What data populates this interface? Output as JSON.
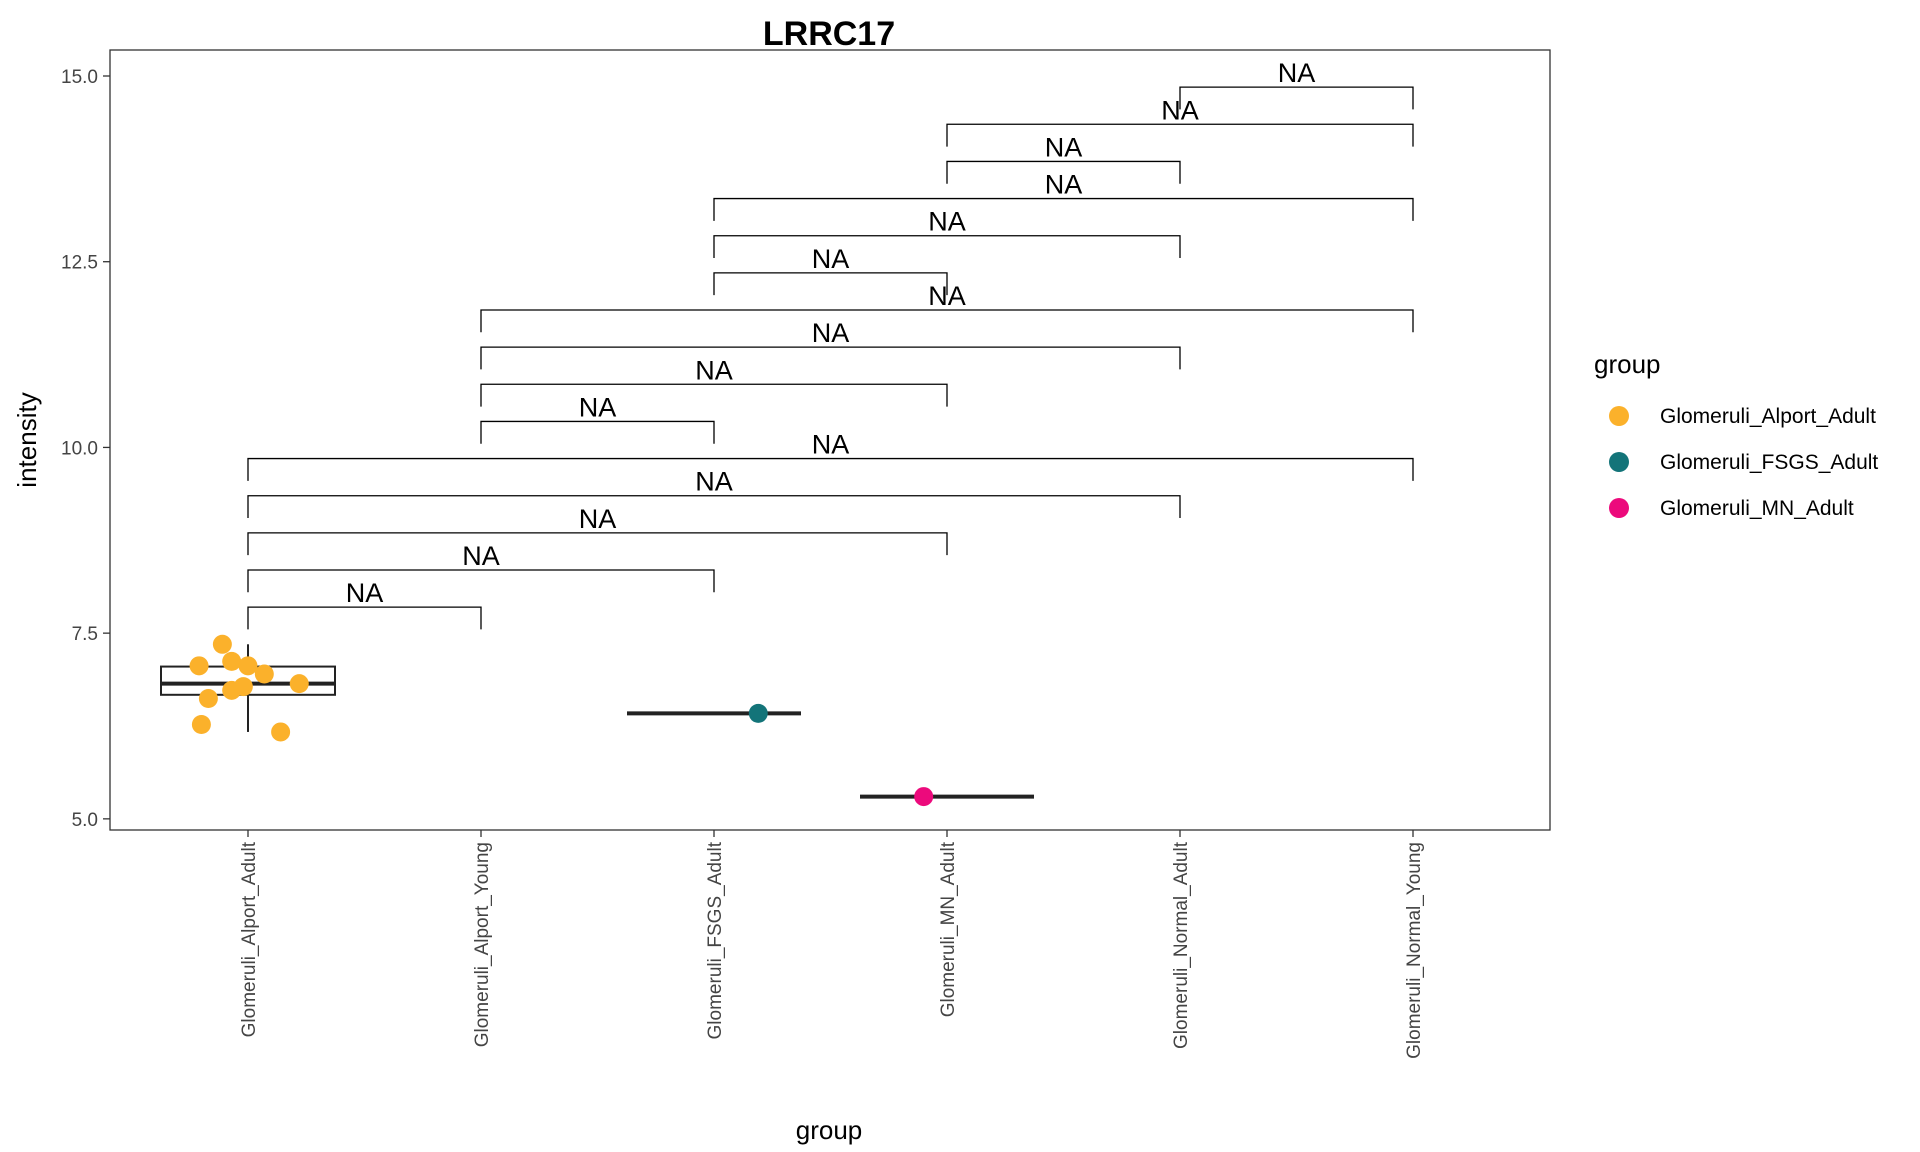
{
  "chart_data": {
    "type": "boxplot",
    "title": "LRRC17",
    "xlabel": "group",
    "ylabel": "intensity",
    "ylim": [
      4.85,
      15.35
    ],
    "y_ticks": [
      5.0,
      7.5,
      10.0,
      12.5,
      15.0
    ],
    "y_tick_labels": [
      "5.0",
      "7.5",
      "10.0",
      "12.5",
      "15.0"
    ],
    "grid": false,
    "categories": [
      "Glomeruli_Alport_Adult",
      "Glomeruli_Alport_Young",
      "Glomeruli_FSGS_Adult",
      "Glomeruli_MN_Adult",
      "Glomeruli_Normal_Adult",
      "Glomeruli_Normal_Young"
    ],
    "boxes": [
      {
        "category_index": 0,
        "lower_whisker": 6.17,
        "q1": 6.67,
        "median": 6.82,
        "q3": 7.05,
        "upper_whisker": 7.35
      },
      {
        "category_index": 2,
        "lower_whisker": 6.42,
        "q1": 6.42,
        "median": 6.42,
        "q3": 6.42,
        "upper_whisker": 6.42
      },
      {
        "category_index": 3,
        "lower_whisker": 5.3,
        "q1": 5.3,
        "median": 5.3,
        "q3": 5.3,
        "upper_whisker": 5.3
      }
    ],
    "series": [
      {
        "name": "Glomeruli_Alport_Adult",
        "color": "#FBB12B",
        "category_index": 0,
        "points": [
          {
            "jitter": -0.21,
            "y": 7.06
          },
          {
            "jitter": -0.11,
            "y": 7.35
          },
          {
            "jitter": -0.07,
            "y": 7.12
          },
          {
            "jitter": 0.0,
            "y": 7.06
          },
          {
            "jitter": 0.07,
            "y": 6.95
          },
          {
            "jitter": -0.17,
            "y": 6.62
          },
          {
            "jitter": -0.07,
            "y": 6.73
          },
          {
            "jitter": -0.02,
            "y": 6.78
          },
          {
            "jitter": 0.22,
            "y": 6.82
          },
          {
            "jitter": -0.2,
            "y": 6.27
          },
          {
            "jitter": 0.14,
            "y": 6.17
          }
        ]
      },
      {
        "name": "Glomeruli_FSGS_Adult",
        "color": "#137479",
        "category_index": 2,
        "points": [
          {
            "jitter": 0.19,
            "y": 6.42
          }
        ]
      },
      {
        "name": "Glomeruli_MN_Adult",
        "color": "#EC0A7C",
        "category_index": 3,
        "points": [
          {
            "jitter": -0.1,
            "y": 5.3
          }
        ]
      }
    ],
    "comparisons": [
      {
        "from": 0,
        "to": 1,
        "y": 7.85,
        "label": "NA"
      },
      {
        "from": 0,
        "to": 2,
        "y": 8.35,
        "label": "NA"
      },
      {
        "from": 0,
        "to": 3,
        "y": 8.85,
        "label": "NA"
      },
      {
        "from": 0,
        "to": 4,
        "y": 9.35,
        "label": "NA"
      },
      {
        "from": 0,
        "to": 5,
        "y": 9.85,
        "label": "NA"
      },
      {
        "from": 1,
        "to": 2,
        "y": 10.35,
        "label": "NA"
      },
      {
        "from": 1,
        "to": 3,
        "y": 10.85,
        "label": "NA"
      },
      {
        "from": 1,
        "to": 4,
        "y": 11.35,
        "label": "NA"
      },
      {
        "from": 1,
        "to": 5,
        "y": 11.85,
        "label": "NA"
      },
      {
        "from": 2,
        "to": 3,
        "y": 12.35,
        "label": "NA"
      },
      {
        "from": 2,
        "to": 4,
        "y": 12.85,
        "label": "NA"
      },
      {
        "from": 2,
        "to": 5,
        "y": 13.35,
        "label": "NA"
      },
      {
        "from": 3,
        "to": 4,
        "y": 13.85,
        "label": "NA"
      },
      {
        "from": 3,
        "to": 5,
        "y": 14.35,
        "label": "NA"
      },
      {
        "from": 4,
        "to": 5,
        "y": 14.85,
        "label": "NA"
      }
    ],
    "bracket_tip_length": 0.3,
    "legend": {
      "title": "group",
      "position": "right",
      "entries": [
        {
          "label": "Glomeruli_Alport_Adult",
          "color": "#FBB12B"
        },
        {
          "label": "Glomeruli_FSGS_Adult",
          "color": "#137479"
        },
        {
          "label": "Glomeruli_MN_Adult",
          "color": "#EC0A7C"
        }
      ]
    }
  }
}
